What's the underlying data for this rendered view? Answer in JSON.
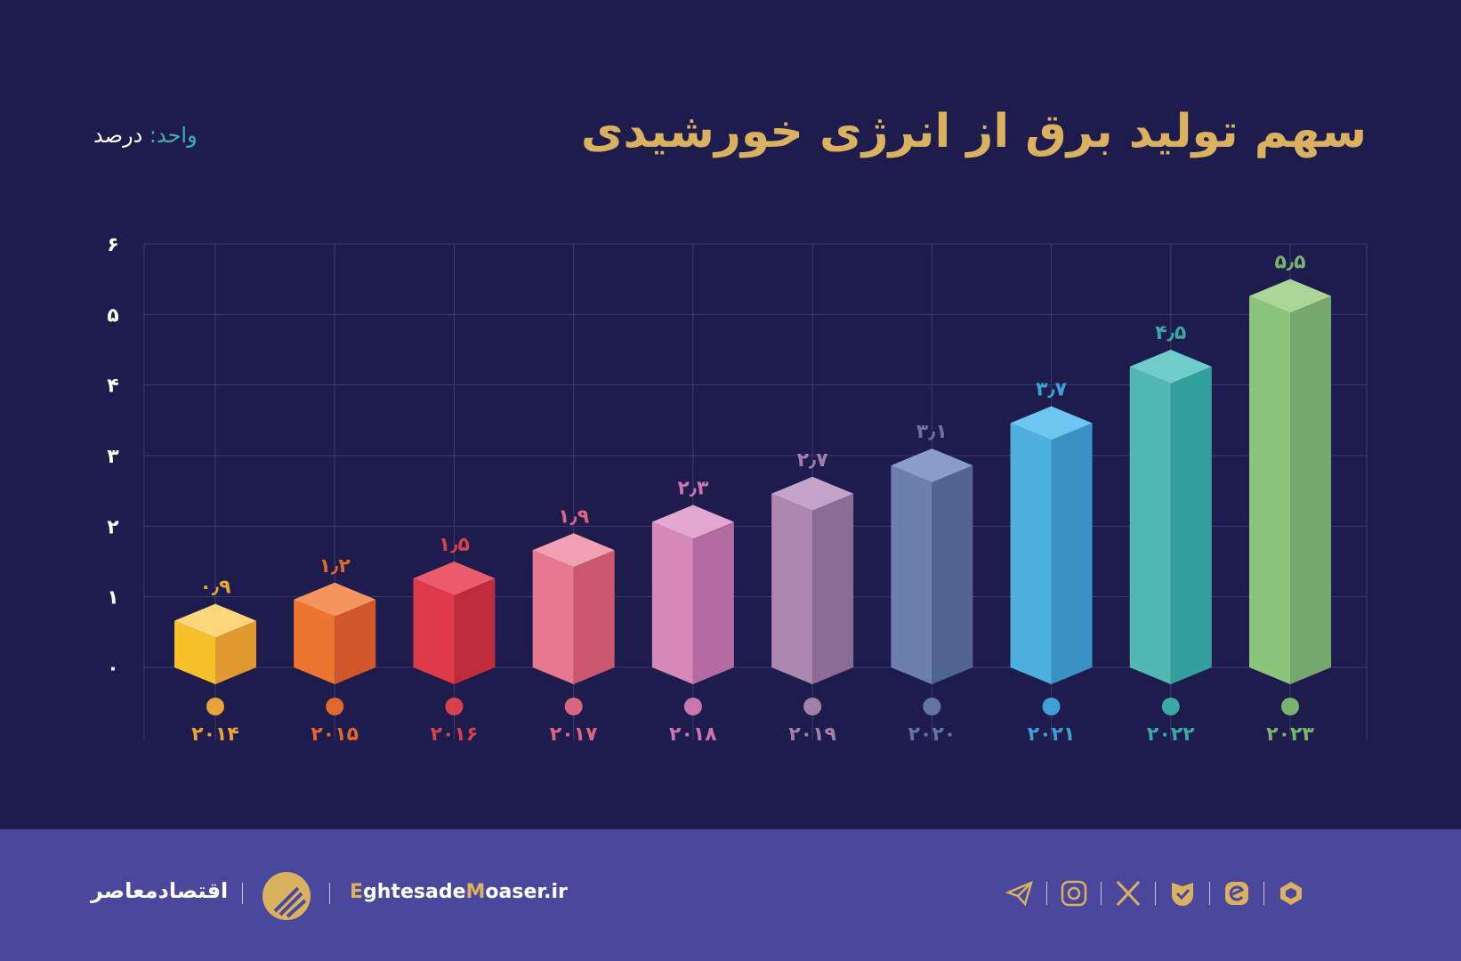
{
  "title": "سهم تولید برق از انرژی خورشیدی",
  "unit": {
    "key": "واحد:",
    "value": "درصد"
  },
  "chart_data": {
    "type": "bar",
    "title": "سهم تولید برق از انرژی خورشیدی",
    "ylabel": "",
    "xlabel": "",
    "unit": "درصد",
    "ylim": [
      0,
      6
    ],
    "yticks": [
      "۰",
      "۱",
      "۲",
      "۳",
      "۴",
      "۵",
      "۶"
    ],
    "grid": true,
    "categories": [
      "۲۰۱۴",
      "۲۰۱۵",
      "۲۰۱۶",
      "۲۰۱۷",
      "۲۰۱۸",
      "۲۰۱۹",
      "۲۰۲۰",
      "۲۰۲۱",
      "۲۰۲۲",
      "۲۰۲۳"
    ],
    "values": [
      0.9,
      1.2,
      1.5,
      1.9,
      2.3,
      2.7,
      3.1,
      3.7,
      4.5,
      5.5
    ],
    "value_labels": [
      "۰٫۹",
      "۱٫۲",
      "۱٫۵",
      "۱٫۹",
      "۲٫۳",
      "۲٫۷",
      "۳٫۱",
      "۳٫۷",
      "۴٫۵",
      "۵٫۵"
    ],
    "colors": [
      [
        "#f5c02a",
        "#e09a30",
        "#fcd77a",
        "#e8a43a"
      ],
      [
        "#ec7530",
        "#d0582c",
        "#f4955f",
        "#e0682e"
      ],
      [
        "#df3a4a",
        "#be2c3c",
        "#ea5c6c",
        "#d8404e"
      ],
      [
        "#e87890",
        "#cc5870",
        "#f0a0b0",
        "#dc6680"
      ],
      [
        "#d688b8",
        "#b46aa0",
        "#e4a8d0",
        "#c878ae"
      ],
      [
        "#ac88b0",
        "#8a6c94",
        "#c4a4c8",
        "#a080a8"
      ],
      [
        "#6c80b0",
        "#506494",
        "#8a9cc8",
        "#6474a4"
      ],
      [
        "#4eb0de",
        "#3a92c4",
        "#6cc6ee",
        "#3ea0d4"
      ],
      [
        "#52b8b4",
        "#34a09c",
        "#70ccc8",
        "#3aa8a4"
      ],
      [
        "#8cc47c",
        "#74a86c",
        "#acd698",
        "#7ab46c"
      ]
    ]
  },
  "footer": {
    "brand": "اقتصادمعاصر",
    "site_e": "E",
    "site_1": "ghtesade",
    "site_m": "M",
    "site_2": "oaser.ir",
    "icons": [
      "telegram-icon",
      "instagram-icon",
      "x-icon",
      "bale-icon",
      "eitaa-icon",
      "rubika-icon"
    ]
  }
}
